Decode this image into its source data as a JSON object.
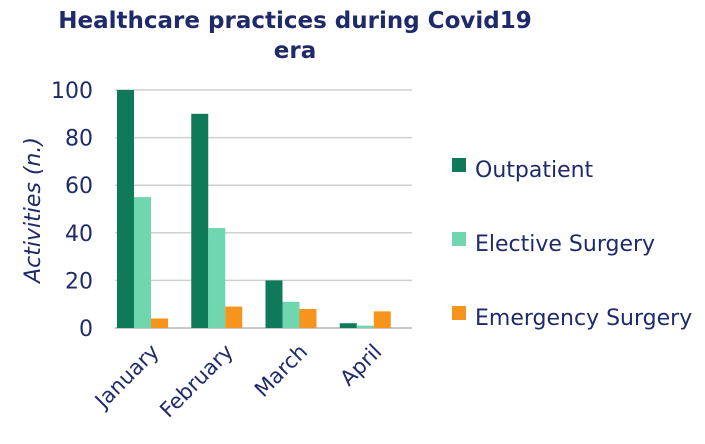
{
  "chart_data": {
    "type": "bar",
    "title": "Healthcare practices during Covid19 era",
    "xlabel": "",
    "ylabel": "Activities (n.)",
    "ylim": [
      0,
      100
    ],
    "yticks": [
      0,
      20,
      40,
      60,
      80,
      100
    ],
    "grid": "horizontal",
    "legend_position": "right",
    "categories": [
      "January",
      "February",
      "March",
      "April"
    ],
    "series": [
      {
        "name": "Outpatient",
        "color": "#0f7a5a",
        "values": [
          100,
          90,
          20,
          2
        ]
      },
      {
        "name": "Elective Surgery",
        "color": "#6fd6b0",
        "values": [
          55,
          42,
          11,
          1
        ]
      },
      {
        "name": "Emergency Surgery",
        "color": "#f7941d",
        "values": [
          4,
          9,
          8,
          7
        ]
      }
    ]
  }
}
